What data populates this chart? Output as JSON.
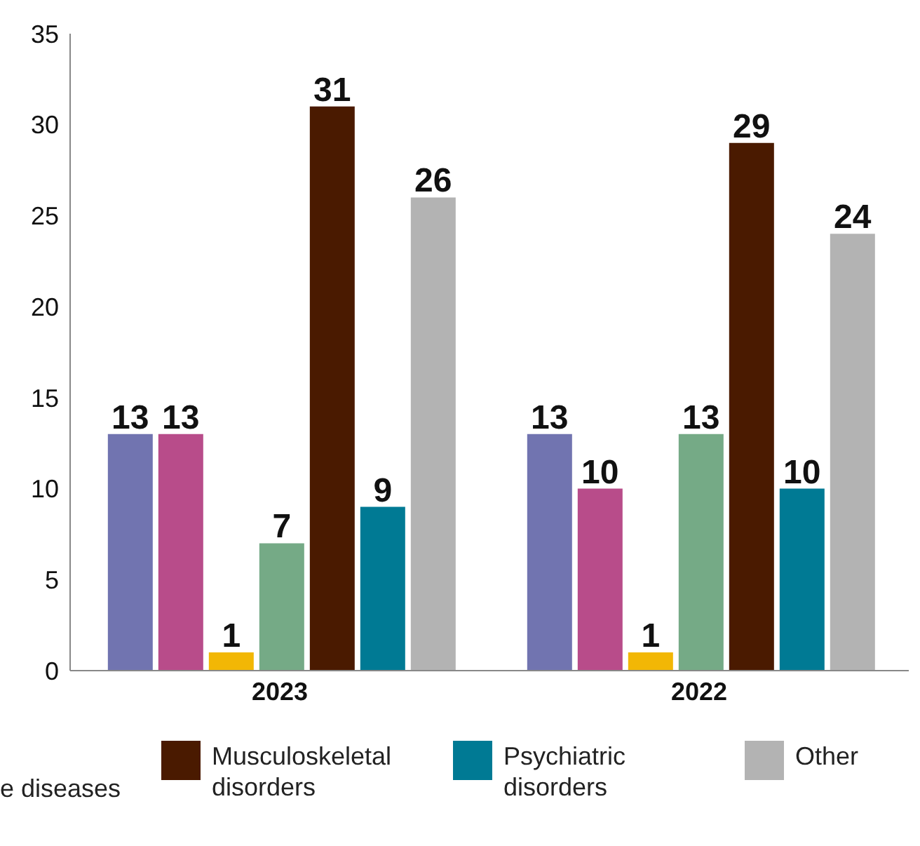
{
  "chart_data": {
    "type": "bar",
    "categories": [
      "2023",
      "2022"
    ],
    "series": [
      {
        "color": "#7174b0",
        "values": [
          13,
          13
        ]
      },
      {
        "color": "#b84c8a",
        "values": [
          13,
          10
        ]
      },
      {
        "color": "#f2b705",
        "values": [
          1,
          1
        ]
      },
      {
        "color": "#75aa86",
        "values": [
          7,
          13
        ]
      },
      {
        "name": "Musculoskeletal disorders",
        "color": "#4a1a00",
        "values": [
          31,
          29
        ]
      },
      {
        "name": "Psychiatric disorders",
        "color": "#007a94",
        "values": [
          9,
          10
        ]
      },
      {
        "name": "Other",
        "color": "#b3b3b3",
        "values": [
          26,
          24
        ]
      }
    ],
    "ylim": [
      0,
      35
    ],
    "yticks": [
      0,
      5,
      10,
      15,
      20,
      25,
      30,
      35
    ],
    "data_labels": true,
    "legend": "bottom",
    "annotations": [
      "e diseases"
    ]
  }
}
